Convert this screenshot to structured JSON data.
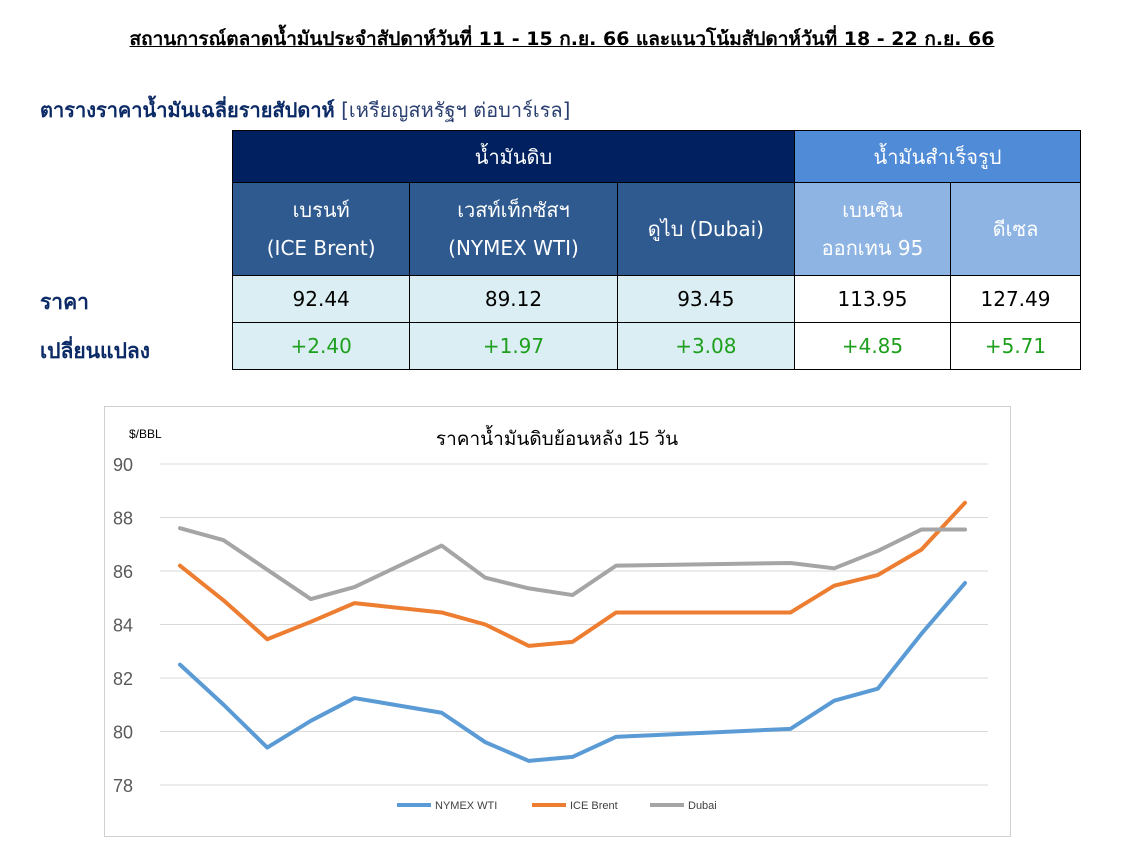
{
  "report": {
    "title": "สถานการณ์ตลาดน้ำมันประจำสัปดาห์วันที่ 11 - 15 ก.ย. 66 และแนวโน้มสัปดาห์วันที่ 18 - 22 ก.ย. 66"
  },
  "table": {
    "heading": "ตารางราคาน้ำมันเฉลี่ยรายสัปดาห์",
    "unit": "[เหรียญสหรัฐฯ ต่อบาร์เรล]",
    "group_crude": "น้ำมันดิบ",
    "group_refined": "น้ำมันสำเร็จรูป",
    "columns": [
      {
        "line1": "เบรนท์",
        "line2": "(ICE Brent)"
      },
      {
        "line1": "เวสท์เท็กซัสฯ",
        "line2": "(NYMEX WTI)"
      },
      {
        "line1": "ดูไบ (Dubai)",
        "line2": ""
      },
      {
        "line1": "เบนซิน",
        "line2": "ออกเทน  95"
      },
      {
        "line1": "ดีเซล",
        "line2": ""
      }
    ],
    "row_price_label": "ราคา",
    "row_change_label": "เปลี่ยนแปลง",
    "prices": [
      "92.44",
      "89.12",
      "93.45",
      "113.95",
      "127.49"
    ],
    "changes": [
      "+2.40",
      "+1.97",
      "+3.08",
      "+4.85",
      "+5.71"
    ],
    "colors": {
      "crude_header": "#002060",
      "refined_header": "#4f8bd6",
      "positive": "#1ea01e"
    }
  },
  "chart_data": {
    "type": "line",
    "title": "ราคาน้ำมันดิบย้อนหลัง 15 วัน",
    "ylabel": "$/BBL",
    "xlabel": "",
    "ylim": [
      78,
      90
    ],
    "yticks": [
      78,
      80,
      82,
      84,
      86,
      88,
      90
    ],
    "grid": true,
    "legend_position": "bottom",
    "x": [
      0,
      1,
      2,
      3,
      4,
      6,
      7,
      8,
      9,
      10,
      14,
      15,
      16,
      17,
      18
    ],
    "series": [
      {
        "name": "NYMEX WTI",
        "color": "#5b9bd5",
        "values": [
          82.5,
          81.0,
          79.4,
          80.4,
          81.25,
          80.7,
          79.6,
          78.9,
          79.05,
          79.8,
          80.1,
          81.15,
          81.6,
          83.65,
          85.55
        ]
      },
      {
        "name": "ICE Brent",
        "color": "#ed7d31",
        "values": [
          86.2,
          84.9,
          83.45,
          84.1,
          84.8,
          84.45,
          84.0,
          83.2,
          83.35,
          84.45,
          84.45,
          85.45,
          85.85,
          86.8,
          88.55
        ]
      },
      {
        "name": "Dubai",
        "color": "#a5a5a5",
        "values": [
          87.6,
          87.15,
          86.05,
          84.95,
          85.4,
          86.95,
          85.75,
          85.35,
          85.1,
          86.2,
          86.3,
          86.1,
          86.75,
          87.55,
          87.55
        ]
      }
    ]
  }
}
